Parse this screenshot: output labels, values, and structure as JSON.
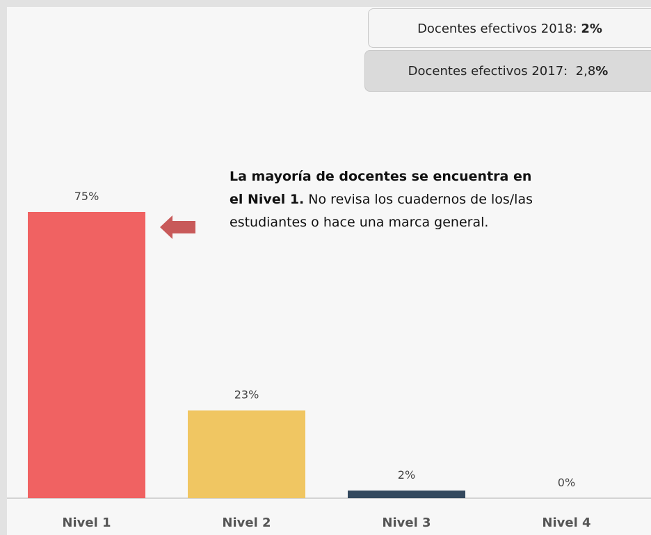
{
  "chart_data": {
    "type": "bar",
    "categories": [
      "Nivel 1",
      "Nivel 2",
      "Nivel 3",
      "Nivel 4"
    ],
    "values": [
      75,
      23,
      2,
      0
    ],
    "value_labels": [
      "75%",
      "23%",
      "2%",
      "0%"
    ],
    "colors": [
      "#f06262",
      "#f0c662",
      "#34495e",
      "#7a9cc6"
    ],
    "info_boxes": [
      {
        "text": "Docentes efectivos 2018: ",
        "bold": "2%"
      },
      {
        "text": "Docentes efectivos 2017:  2,8",
        "bold": "%"
      }
    ],
    "annotation": {
      "bold": "La mayoría de docentes se encuentra en el Nivel 1.",
      "text": " No revisa los cuadernos de los/las estudiantes o hace una marca general."
    }
  }
}
